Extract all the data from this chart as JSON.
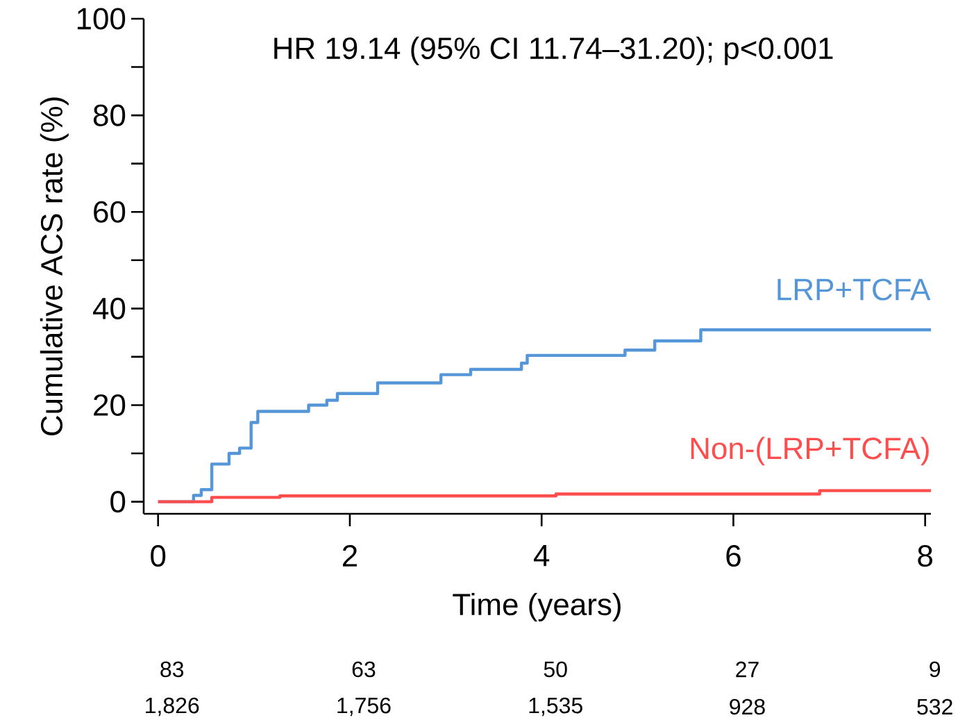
{
  "chart_data": {
    "type": "step",
    "xlabel": "Time (years)",
    "ylabel": "Cumulative ACS rate (%)",
    "xlim": [
      -0.15,
      8.06
    ],
    "ylim": [
      -2.5,
      100
    ],
    "xticks": [
      0,
      2,
      4,
      6,
      8
    ],
    "yticks": [
      0,
      20,
      40,
      60,
      80,
      100
    ],
    "series": [
      {
        "name": "LRP+TCFA",
        "color": "#5596d8",
        "x": [
          0,
          0.37,
          0.45,
          0.56,
          0.74,
          0.85,
          0.97,
          1.04,
          1.57,
          1.76,
          1.87,
          2.29,
          2.95,
          3.26,
          3.79,
          3.85,
          4.87,
          5.18,
          5.66,
          8.06
        ],
        "values": [
          0,
          1.3,
          2.5,
          7.8,
          10.0,
          11.1,
          16.4,
          18.7,
          20.0,
          21.0,
          22.4,
          24.6,
          26.3,
          27.4,
          28.7,
          30.3,
          31.4,
          33.3,
          35.6,
          35.6
        ]
      },
      {
        "name": "Non-(LRP+TCFA)",
        "color": "#ff4d4d",
        "x": [
          0,
          0.56,
          1.27,
          4.15,
          6.9,
          8.06
        ],
        "values": [
          0,
          0.9,
          1.2,
          1.6,
          2.3,
          2.3
        ]
      }
    ],
    "annotations": [
      "HR 19.14 (95% CI 11.74–31.20); p<0.001",
      "83",
      "63",
      "50",
      "27",
      "9",
      "1,826",
      "1,756",
      "1,535",
      "928",
      "532"
    ]
  }
}
